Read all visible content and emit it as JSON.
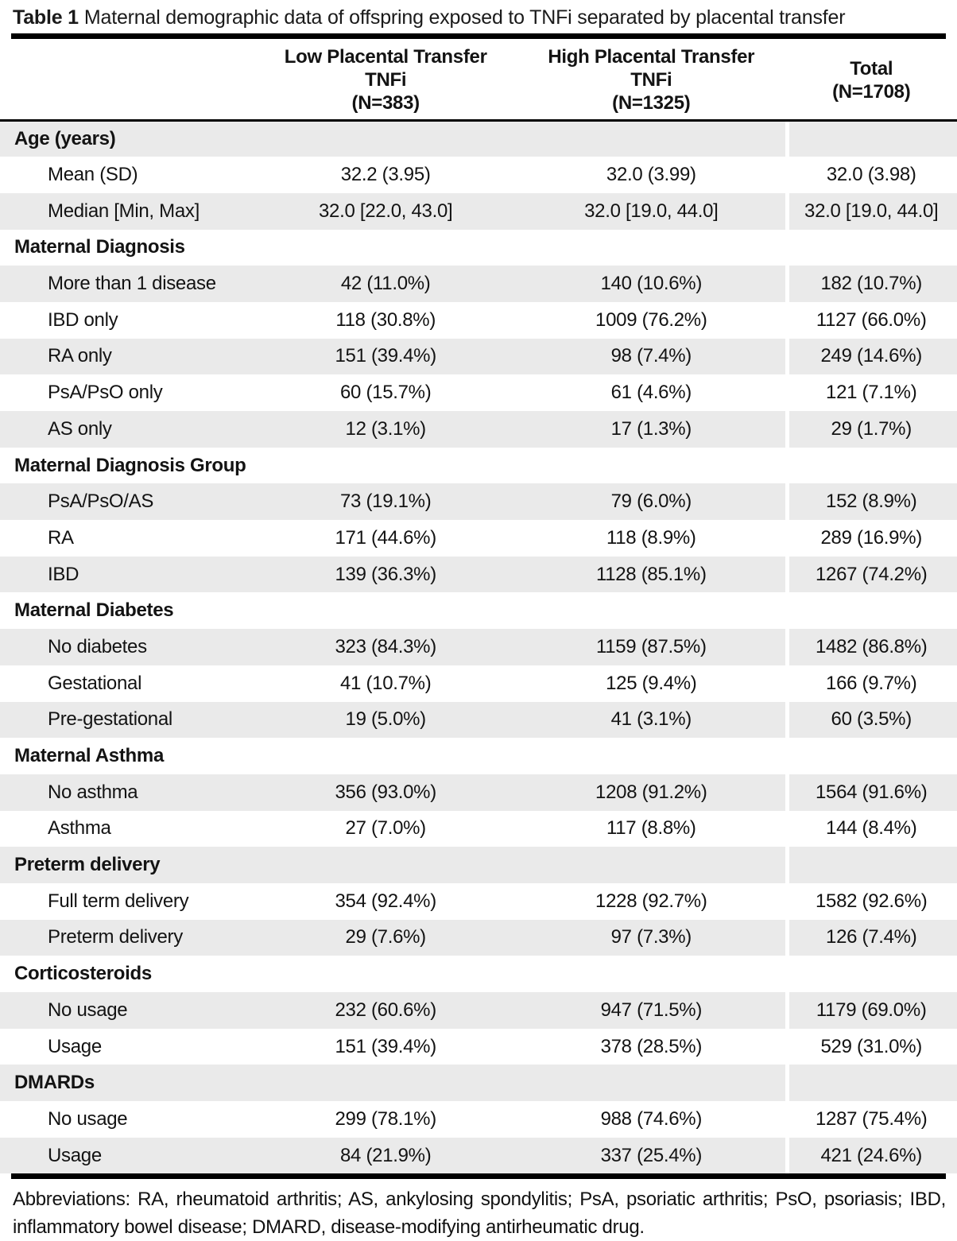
{
  "title": {
    "label": "Table 1",
    "text": "Maternal demographic data of offspring exposed to TNFi separated by placental transfer"
  },
  "columns": [
    {
      "lines": [
        "Low Placental Transfer",
        "TNFi",
        "(N=383)"
      ]
    },
    {
      "lines": [
        "High Placental Transfer",
        "TNFi",
        "(N=1325)"
      ]
    },
    {
      "lines": [
        "Total",
        "(N=1708)"
      ]
    }
  ],
  "rows": [
    {
      "type": "section",
      "label": "Age (years)",
      "values": [
        "",
        "",
        ""
      ]
    },
    {
      "type": "item",
      "label": "Mean (SD)",
      "values": [
        "32.2 (3.95)",
        "32.0 (3.99)",
        "32.0 (3.98)"
      ]
    },
    {
      "type": "item",
      "label": "Median [Min, Max]",
      "values": [
        "32.0 [22.0, 43.0]",
        "32.0 [19.0, 44.0]",
        "32.0 [19.0, 44.0]"
      ]
    },
    {
      "type": "section",
      "label": "Maternal Diagnosis",
      "values": [
        "",
        "",
        ""
      ]
    },
    {
      "type": "item",
      "label": "More than 1 disease",
      "values": [
        "42 (11.0%)",
        "140 (10.6%)",
        "182 (10.7%)"
      ]
    },
    {
      "type": "item",
      "label": "IBD only",
      "values": [
        "118 (30.8%)",
        "1009 (76.2%)",
        "1127 (66.0%)"
      ]
    },
    {
      "type": "item",
      "label": "RA only",
      "values": [
        "151 (39.4%)",
        "98 (7.4%)",
        "249 (14.6%)"
      ]
    },
    {
      "type": "item",
      "label": "PsA/PsO only",
      "values": [
        "60 (15.7%)",
        "61 (4.6%)",
        "121 (7.1%)"
      ]
    },
    {
      "type": "item",
      "label": "AS only",
      "values": [
        "12 (3.1%)",
        "17 (1.3%)",
        "29 (1.7%)"
      ]
    },
    {
      "type": "section",
      "label": "Maternal Diagnosis Group",
      "values": [
        "",
        "",
        ""
      ]
    },
    {
      "type": "item",
      "label": "PsA/PsO/AS",
      "values": [
        "73 (19.1%)",
        "79 (6.0%)",
        "152 (8.9%)"
      ]
    },
    {
      "type": "item",
      "label": "RA",
      "values": [
        "171 (44.6%)",
        "118 (8.9%)",
        "289 (16.9%)"
      ]
    },
    {
      "type": "item",
      "label": "IBD",
      "values": [
        "139 (36.3%)",
        "1128 (85.1%)",
        "1267 (74.2%)"
      ]
    },
    {
      "type": "section",
      "label": "Maternal Diabetes",
      "values": [
        "",
        "",
        ""
      ]
    },
    {
      "type": "item",
      "label": "No diabetes",
      "values": [
        "323 (84.3%)",
        "1159 (87.5%)",
        "1482 (86.8%)"
      ]
    },
    {
      "type": "item",
      "label": "Gestational",
      "values": [
        "41 (10.7%)",
        "125 (9.4%)",
        "166 (9.7%)"
      ]
    },
    {
      "type": "item",
      "label": "Pre-gestational",
      "values": [
        "19 (5.0%)",
        "41 (3.1%)",
        "60 (3.5%)"
      ]
    },
    {
      "type": "section",
      "label": "Maternal Asthma",
      "values": [
        "",
        "",
        ""
      ]
    },
    {
      "type": "item",
      "label": "No asthma",
      "values": [
        "356 (93.0%)",
        "1208 (91.2%)",
        "1564 (91.6%)"
      ]
    },
    {
      "type": "item",
      "label": "Asthma",
      "values": [
        "27 (7.0%)",
        "117 (8.8%)",
        "144 (8.4%)"
      ]
    },
    {
      "type": "section",
      "label": "Preterm delivery",
      "values": [
        "",
        "",
        ""
      ]
    },
    {
      "type": "item",
      "label": "Full term delivery",
      "values": [
        "354 (92.4%)",
        "1228 (92.7%)",
        "1582 (92.6%)"
      ]
    },
    {
      "type": "item",
      "label": "Preterm delivery",
      "values": [
        "29 (7.6%)",
        "97 (7.3%)",
        "126 (7.4%)"
      ]
    },
    {
      "type": "section",
      "label": "Corticosteroids",
      "values": [
        "",
        "",
        ""
      ]
    },
    {
      "type": "item",
      "label": "No usage",
      "values": [
        "232 (60.6%)",
        "947 (71.5%)",
        "1179 (69.0%)"
      ]
    },
    {
      "type": "item",
      "label": "Usage",
      "values": [
        "151 (39.4%)",
        "378 (28.5%)",
        "529 (31.0%)"
      ]
    },
    {
      "type": "section",
      "label": "DMARDs",
      "values": [
        "",
        "",
        ""
      ]
    },
    {
      "type": "item",
      "label": "No usage",
      "values": [
        "299 (78.1%)",
        "988 (74.6%)",
        "1287 (75.4%)"
      ]
    },
    {
      "type": "item",
      "label": "Usage",
      "values": [
        "84 (21.9%)",
        "337 (25.4%)",
        "421 (24.6%)"
      ]
    }
  ],
  "footnote": {
    "line1": "Abbreviations: RA, rheumatoid arthritis; AS, ankylosing spondylitis; PsA, psoriatic arthritis; PsO, psoriasis; IBD,",
    "line2": "inflammatory bowel disease; DMARD, disease-modifying antirheumatic drug."
  },
  "colors": {
    "stripe": "#eaeaea",
    "rule": "#000000",
    "text": "#131313"
  }
}
